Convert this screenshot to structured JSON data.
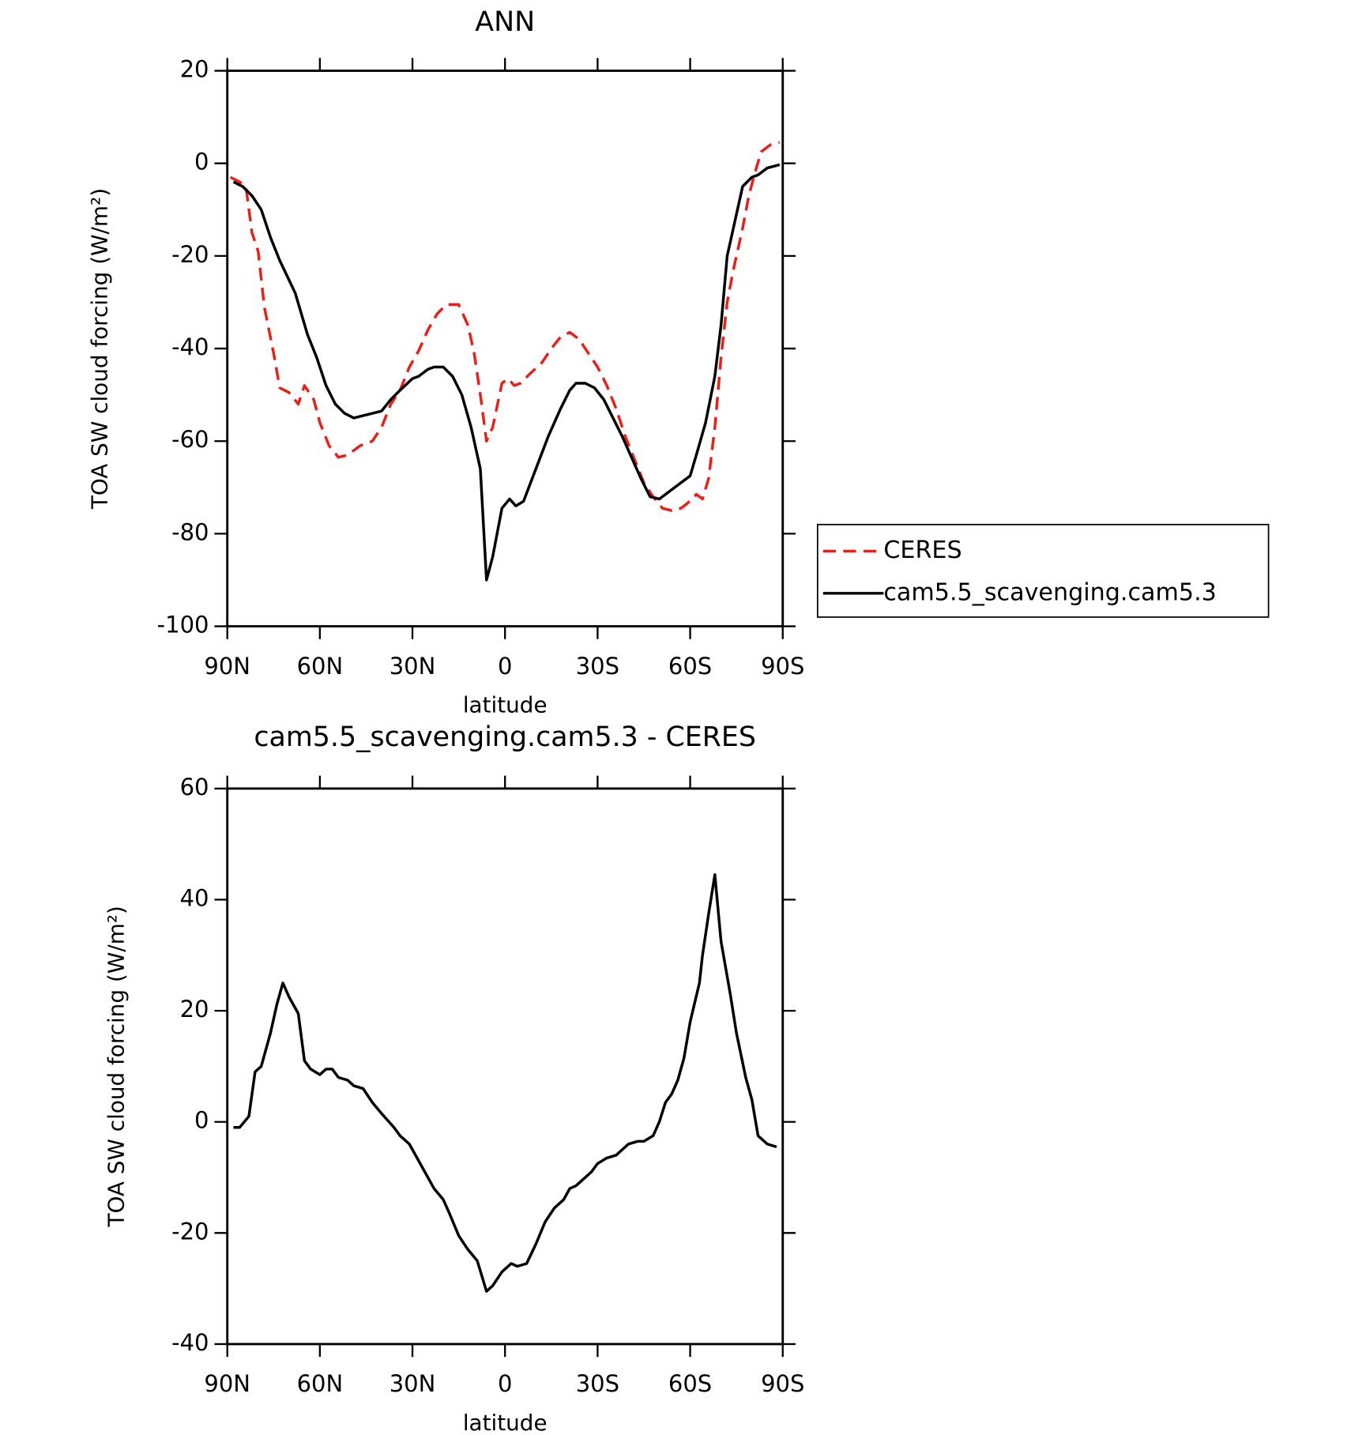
{
  "chart_data": [
    {
      "type": "line",
      "title": "ANN",
      "xlabel": "latitude",
      "ylabel": "TOA SW cloud forcing (W/m²)",
      "xlim": [
        90,
        -90
      ],
      "ylim": [
        -100,
        20
      ],
      "xticks": [
        {
          "value": 90,
          "label": "90N"
        },
        {
          "value": 60,
          "label": "60N"
        },
        {
          "value": 30,
          "label": "30N"
        },
        0,
        {
          "value": -30,
          "label": "30S"
        },
        {
          "value": -60,
          "label": "60S"
        },
        {
          "value": -90,
          "label": "90S"
        }
      ],
      "yticks": [
        -100,
        -80,
        -60,
        -40,
        -20,
        0,
        20
      ],
      "legend": "right",
      "series": [
        {
          "name": "CERES",
          "color": "#e8201a",
          "style": "dashed",
          "x": [
            89,
            86,
            84,
            82,
            80,
            78,
            75,
            73,
            70,
            67,
            65,
            62,
            60,
            57,
            54,
            51,
            47,
            43,
            40,
            37,
            34,
            31,
            28,
            25,
            22,
            19,
            15,
            12,
            10,
            8,
            6,
            4,
            1,
            -1,
            -3,
            -5,
            -8,
            -12,
            -15,
            -18,
            -21,
            -24,
            -27,
            -30,
            -33,
            -36,
            -39,
            -42,
            -45,
            -48,
            -51,
            -54,
            -57,
            -59,
            -62,
            -64,
            -66,
            -68,
            -70,
            -72,
            -74,
            -77,
            -79,
            -81,
            -83,
            -86,
            -89
          ],
          "values": [
            -3,
            -4,
            -5,
            -15,
            -19,
            -31,
            -41,
            -48.5,
            -49.5,
            -52,
            -48,
            -51,
            -56,
            -61,
            -63.5,
            -63,
            -61,
            -60,
            -57,
            -52,
            -49,
            -44,
            -40.5,
            -36,
            -32.5,
            -30.5,
            -30.5,
            -35,
            -41,
            -50,
            -60,
            -57,
            -47.5,
            -46.5,
            -48,
            -47.5,
            -45.5,
            -43,
            -40,
            -37.5,
            -36.5,
            -38,
            -41,
            -44,
            -48,
            -53,
            -59,
            -64,
            -69,
            -72,
            -74.5,
            -75,
            -74.5,
            -73.5,
            -71.5,
            -72.5,
            -68,
            -57,
            -42,
            -30,
            -23,
            -14,
            -7,
            -2,
            2.5,
            4,
            4.5
          ]
        },
        {
          "name": "cam5.5_scavenging.cam5.3",
          "color": "#000000",
          "style": "solid",
          "x": [
            88,
            85,
            82,
            79,
            76,
            73,
            68,
            64,
            61,
            58,
            55,
            52,
            49,
            40,
            37,
            34,
            30,
            28,
            25,
            23,
            20,
            17,
            14,
            11,
            8,
            6,
            4,
            1,
            -1.5,
            -3.5,
            -6,
            -10,
            -14,
            -18,
            -21,
            -23,
            -26,
            -29,
            -32,
            -35,
            -38,
            -41,
            -44,
            -47,
            -50,
            -53,
            -56,
            -60,
            -62,
            -65,
            -68,
            -70,
            -72,
            -75,
            -77,
            -80,
            -82,
            -85,
            -89
          ],
          "values": [
            -4,
            -5,
            -7,
            -10,
            -16,
            -21,
            -28,
            -37,
            -42,
            -48,
            -52,
            -54,
            -55,
            -53.5,
            -51,
            -49,
            -46.5,
            -46,
            -44.5,
            -44,
            -44,
            -46,
            -50,
            -57,
            -66,
            -90,
            -85,
            -74.5,
            -72.5,
            -74,
            -73,
            -66,
            -59,
            -53,
            -49,
            -47.5,
            -47.5,
            -48.5,
            -51,
            -55,
            -59,
            -63.5,
            -68,
            -72,
            -72.5,
            -71,
            -69.5,
            -67.5,
            -63,
            -56,
            -46,
            -35,
            -20,
            -11,
            -5,
            -3,
            -2.5,
            -1,
            -0.3
          ]
        }
      ]
    },
    {
      "type": "line",
      "title": "cam5.5_scavenging.cam5.3 - CERES",
      "xlabel": "latitude",
      "ylabel": "TOA SW cloud forcing (W/m²)",
      "xlim": [
        90,
        -90
      ],
      "ylim": [
        -40,
        60
      ],
      "xticks": [
        {
          "value": 90,
          "label": "90N"
        },
        {
          "value": 60,
          "label": "60N"
        },
        {
          "value": 30,
          "label": "30N"
        },
        0,
        {
          "value": -30,
          "label": "30S"
        },
        {
          "value": -60,
          "label": "60S"
        },
        {
          "value": -90,
          "label": "90S"
        }
      ],
      "yticks": [
        -40,
        -20,
        0,
        20,
        40,
        60
      ],
      "color": "#000000",
      "x": [
        88,
        86,
        83,
        81,
        79,
        76,
        74,
        72,
        70,
        67,
        65,
        63,
        60,
        58,
        56,
        54,
        51,
        49,
        46,
        43,
        40,
        36,
        34,
        31,
        29,
        26,
        23,
        20,
        18,
        15,
        12,
        9,
        6,
        4,
        1,
        -2,
        -4,
        -7,
        -10,
        -13,
        -16,
        -19,
        -21,
        -23,
        -26,
        -28,
        -30,
        -33,
        -36,
        -38,
        -40,
        -43,
        -45,
        -48,
        -50,
        -52,
        -54,
        -56,
        -58,
        -60,
        -63,
        -64,
        -66,
        -68,
        -70,
        -73,
        -75,
        -78,
        -80,
        -82,
        -85,
        -88
      ],
      "values": [
        -1,
        -1,
        1,
        9,
        10,
        16,
        21,
        25,
        22.5,
        19.5,
        11,
        9.5,
        8.5,
        9.5,
        9.5,
        8,
        7.5,
        6.5,
        6,
        3.5,
        1.5,
        -1,
        -2.5,
        -4,
        -6,
        -9,
        -12,
        -14,
        -16.5,
        -20.5,
        -23,
        -25,
        -30.5,
        -29.5,
        -27,
        -25.5,
        -26,
        -25.5,
        -22,
        -18,
        -15.5,
        -14,
        -12,
        -11.5,
        -10,
        -9,
        -7.5,
        -6.5,
        -6,
        -5,
        -4,
        -3.5,
        -3.5,
        -2.5,
        0,
        3.5,
        5,
        7.5,
        11.5,
        18,
        25,
        30,
        37.5,
        44.5,
        32.5,
        23,
        16,
        8,
        4,
        -2.5,
        -4,
        -4.5
      ]
    }
  ]
}
